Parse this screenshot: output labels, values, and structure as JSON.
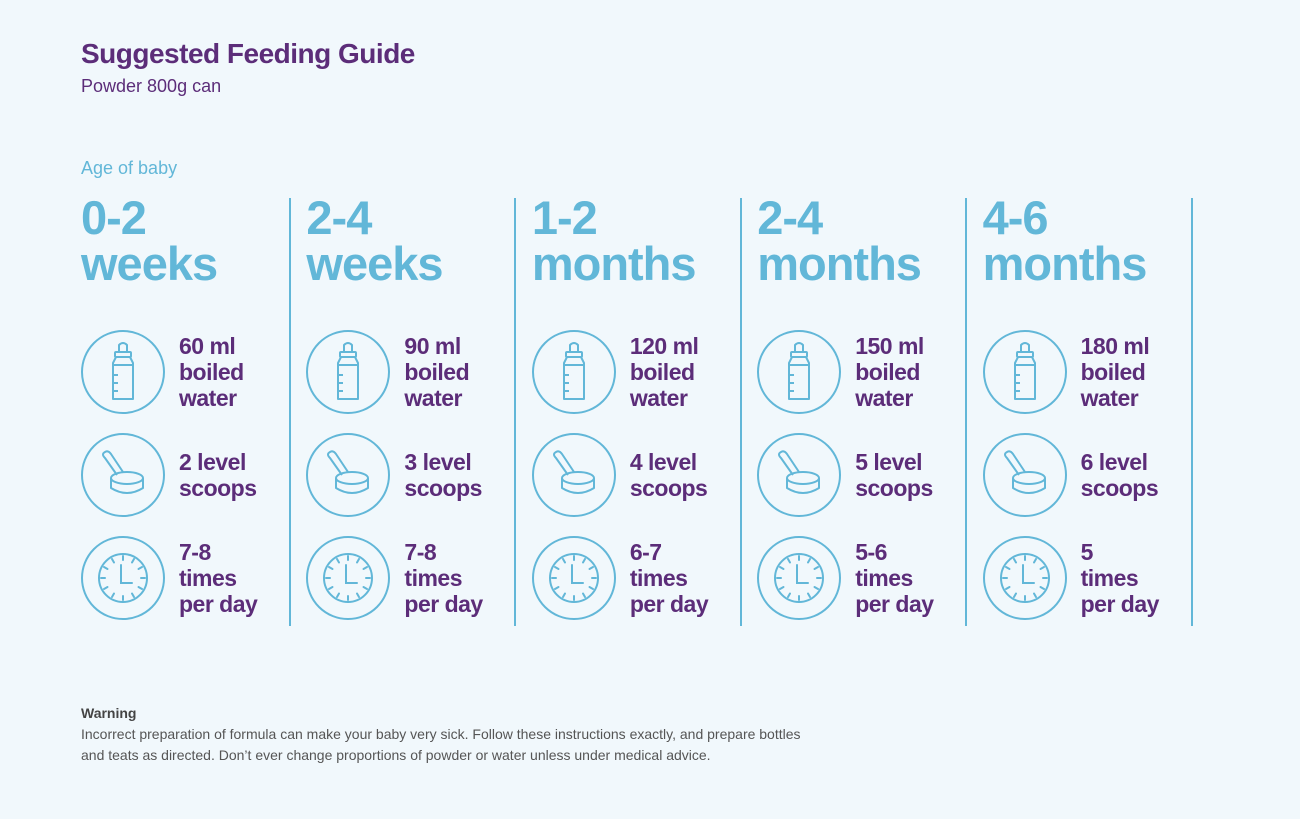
{
  "header": {
    "title": "Suggested Feeding Guide",
    "subtitle": "Powder 800g can",
    "age_label": "Age of baby"
  },
  "colors": {
    "purple": "#5c2d79",
    "blue": "#62b7d8",
    "background": "#f1f8fc"
  },
  "columns": [
    {
      "age_line1": "0-2",
      "age_line2": "weeks",
      "water": [
        "60 ml",
        "boiled",
        "water"
      ],
      "scoops": [
        "2 level",
        "scoops"
      ],
      "times": [
        "7-8",
        "times",
        "per day"
      ]
    },
    {
      "age_line1": "2-4",
      "age_line2": "weeks",
      "water": [
        "90 ml",
        "boiled",
        "water"
      ],
      "scoops": [
        "3 level",
        "scoops"
      ],
      "times": [
        "7-8",
        "times",
        "per day"
      ]
    },
    {
      "age_line1": "1-2",
      "age_line2": "months",
      "water": [
        "120 ml",
        "boiled",
        "water"
      ],
      "scoops": [
        "4 level",
        "scoops"
      ],
      "times": [
        "6-7",
        "times",
        "per day"
      ]
    },
    {
      "age_line1": "2-4",
      "age_line2": "months",
      "water": [
        "150 ml",
        "boiled",
        "water"
      ],
      "scoops": [
        "5 level",
        "scoops"
      ],
      "times": [
        "5-6",
        "times",
        "per day"
      ]
    },
    {
      "age_line1": "4-6",
      "age_line2": "months",
      "water": [
        "180 ml",
        "boiled",
        "water"
      ],
      "scoops": [
        "6 level",
        "scoops"
      ],
      "times": [
        "5",
        "times",
        "per day"
      ]
    }
  ],
  "icons": {
    "water": "bottle-icon",
    "scoops": "scoop-icon",
    "times": "clock-icon"
  },
  "warning": {
    "title": "Warning",
    "line1": "Incorrect preparation of formula can make your baby very sick. Follow these instructions exactly, and prepare bottles",
    "line2": "and teats as directed. Don’t ever change proportions of powder or water unless under medical advice."
  }
}
